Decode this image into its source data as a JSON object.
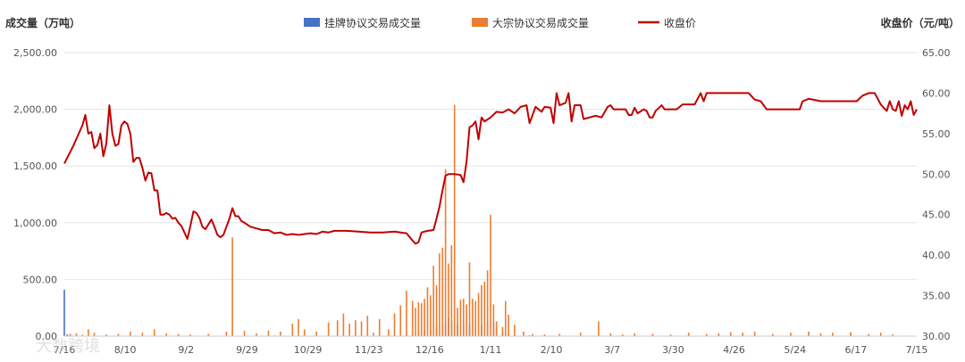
{
  "chart_data": {
    "type": "bar+line",
    "left_axis_title": "成交量（万吨）",
    "right_axis_title": "收盘价（元/吨）",
    "left_ylim": [
      0,
      2500
    ],
    "left_ticks": [
      "0.00",
      "500.00",
      "1,000.00",
      "1,500.00",
      "2,000.00",
      "2,500.00"
    ],
    "right_ylim": [
      30,
      65
    ],
    "right_ticks": [
      "30.00",
      "35.00",
      "40.00",
      "45.00",
      "50.00",
      "55.00",
      "60.00",
      "65.00"
    ],
    "x_ticks": [
      "7/16",
      "8/10",
      "9/2",
      "9/29",
      "10/29",
      "11/23",
      "12/16",
      "1/11",
      "2/10",
      "3/7",
      "3/30",
      "4/26",
      "5/24",
      "6/17",
      "7/15"
    ],
    "legend": [
      {
        "name": "挂牌协议交易成交量",
        "color": "#4472c4",
        "kind": "bar"
      },
      {
        "name": "大宗协议交易成交量",
        "color": "#ed7d31",
        "kind": "bar"
      },
      {
        "name": "收盘价",
        "color": "#c00000",
        "kind": "line"
      }
    ],
    "series": [
      {
        "name": "挂牌协议交易成交量",
        "points": [
          [
            0,
            410
          ],
          [
            1,
            15
          ],
          [
            2,
            8
          ],
          [
            3,
            5
          ],
          [
            10,
            6
          ],
          [
            20,
            4
          ],
          [
            48,
            4
          ],
          [
            70,
            6
          ],
          [
            100,
            3
          ],
          [
            105,
            5
          ],
          [
            110,
            8
          ],
          [
            112,
            10
          ],
          [
            114,
            14
          ],
          [
            116,
            18
          ],
          [
            118,
            30
          ],
          [
            120,
            50
          ],
          [
            122,
            60
          ],
          [
            124,
            80
          ],
          [
            126,
            100
          ],
          [
            127,
            120
          ],
          [
            128,
            160
          ],
          [
            129,
            140
          ],
          [
            130,
            120
          ],
          [
            131,
            100
          ],
          [
            133,
            90
          ],
          [
            135,
            110
          ],
          [
            137,
            90
          ],
          [
            139,
            100
          ],
          [
            141,
            120
          ],
          [
            143,
            130
          ],
          [
            144,
            100
          ],
          [
            146,
            30
          ],
          [
            148,
            20
          ],
          [
            150,
            10
          ],
          [
            155,
            8
          ],
          [
            160,
            5
          ],
          [
            180,
            3
          ],
          [
            200,
            3
          ],
          [
            230,
            3
          ],
          [
            262,
            20
          ],
          [
            275,
            4
          ]
        ]
      },
      {
        "name": "大宗协议交易成交量",
        "points": [
          [
            0,
            10
          ],
          [
            2,
            20
          ],
          [
            4,
            25
          ],
          [
            6,
            12
          ],
          [
            8,
            60
          ],
          [
            10,
            30
          ],
          [
            14,
            15
          ],
          [
            18,
            20
          ],
          [
            22,
            40
          ],
          [
            26,
            30
          ],
          [
            30,
            60
          ],
          [
            34,
            25
          ],
          [
            38,
            20
          ],
          [
            42,
            15
          ],
          [
            48,
            20
          ],
          [
            54,
            40
          ],
          [
            56,
            870
          ],
          [
            60,
            45
          ],
          [
            64,
            25
          ],
          [
            68,
            50
          ],
          [
            72,
            40
          ],
          [
            76,
            110
          ],
          [
            78,
            150
          ],
          [
            80,
            60
          ],
          [
            84,
            40
          ],
          [
            88,
            120
          ],
          [
            91,
            140
          ],
          [
            93,
            200
          ],
          [
            95,
            110
          ],
          [
            97,
            140
          ],
          [
            99,
            130
          ],
          [
            101,
            180
          ],
          [
            103,
            30
          ],
          [
            105,
            150
          ],
          [
            108,
            60
          ],
          [
            110,
            200
          ],
          [
            112,
            270
          ],
          [
            114,
            400
          ],
          [
            116,
            310
          ],
          [
            117,
            250
          ],
          [
            118,
            300
          ],
          [
            119,
            290
          ],
          [
            120,
            330
          ],
          [
            121,
            430
          ],
          [
            122,
            360
          ],
          [
            123,
            620
          ],
          [
            124,
            450
          ],
          [
            125,
            730
          ],
          [
            126,
            780
          ],
          [
            127,
            1470
          ],
          [
            128,
            640
          ],
          [
            129,
            800
          ],
          [
            130,
            2040
          ],
          [
            131,
            250
          ],
          [
            132,
            320
          ],
          [
            133,
            330
          ],
          [
            134,
            280
          ],
          [
            135,
            650
          ],
          [
            136,
            330
          ],
          [
            137,
            310
          ],
          [
            138,
            380
          ],
          [
            139,
            450
          ],
          [
            140,
            480
          ],
          [
            141,
            580
          ],
          [
            142,
            1070
          ],
          [
            143,
            280
          ],
          [
            144,
            130
          ],
          [
            146,
            80
          ],
          [
            147,
            310
          ],
          [
            148,
            190
          ],
          [
            150,
            100
          ],
          [
            153,
            40
          ],
          [
            156,
            20
          ],
          [
            160,
            15
          ],
          [
            165,
            20
          ],
          [
            172,
            30
          ],
          [
            178,
            130
          ],
          [
            182,
            25
          ],
          [
            186,
            15
          ],
          [
            190,
            25
          ],
          [
            196,
            20
          ],
          [
            202,
            15
          ],
          [
            208,
            30
          ],
          [
            214,
            20
          ],
          [
            218,
            25
          ],
          [
            222,
            35
          ],
          [
            226,
            30
          ],
          [
            230,
            40
          ],
          [
            236,
            20
          ],
          [
            242,
            30
          ],
          [
            248,
            40
          ],
          [
            252,
            25
          ],
          [
            256,
            30
          ],
          [
            262,
            35
          ],
          [
            268,
            20
          ],
          [
            272,
            30
          ],
          [
            276,
            15
          ]
        ]
      },
      {
        "name": "收盘价",
        "points": [
          [
            0,
            51.3
          ],
          [
            3,
            53.5
          ],
          [
            6,
            56.0
          ],
          [
            7,
            57.3
          ],
          [
            8,
            55.0
          ],
          [
            9,
            55.2
          ],
          [
            10,
            53.2
          ],
          [
            11,
            53.6
          ],
          [
            12,
            55.0
          ],
          [
            13,
            52.2
          ],
          [
            14,
            53.8
          ],
          [
            15,
            58.5
          ],
          [
            16,
            55.0
          ],
          [
            17,
            53.5
          ],
          [
            18,
            53.7
          ],
          [
            19,
            56.0
          ],
          [
            20,
            56.5
          ],
          [
            21,
            56.2
          ],
          [
            22,
            55.0
          ],
          [
            23,
            51.5
          ],
          [
            24,
            52.0
          ],
          [
            25,
            52.0
          ],
          [
            26,
            50.8
          ],
          [
            27,
            49.2
          ],
          [
            28,
            50.2
          ],
          [
            29,
            50.1
          ],
          [
            30,
            48.0
          ],
          [
            31,
            48.0
          ],
          [
            32,
            45.0
          ],
          [
            33,
            45.0
          ],
          [
            34,
            45.2
          ],
          [
            35,
            45.0
          ],
          [
            36,
            44.5
          ],
          [
            37,
            44.6
          ],
          [
            38,
            44.0
          ],
          [
            39,
            43.6
          ],
          [
            40,
            42.8
          ],
          [
            41,
            42.0
          ],
          [
            42,
            43.6
          ],
          [
            43,
            45.4
          ],
          [
            44,
            45.2
          ],
          [
            45,
            44.6
          ],
          [
            46,
            43.5
          ],
          [
            47,
            43.2
          ],
          [
            48,
            43.8
          ],
          [
            49,
            44.4
          ],
          [
            50,
            43.5
          ],
          [
            51,
            42.5
          ],
          [
            52,
            42.2
          ],
          [
            53,
            42.5
          ],
          [
            54,
            43.5
          ],
          [
            55,
            44.5
          ],
          [
            56,
            45.8
          ],
          [
            57,
            44.8
          ],
          [
            58,
            44.8
          ],
          [
            59,
            44.2
          ],
          [
            60,
            44.0
          ],
          [
            62,
            43.5
          ],
          [
            64,
            43.3
          ],
          [
            66,
            43.1
          ],
          [
            68,
            43.1
          ],
          [
            70,
            42.7
          ],
          [
            72,
            42.8
          ],
          [
            74,
            42.5
          ],
          [
            76,
            42.6
          ],
          [
            78,
            42.5
          ],
          [
            80,
            42.6
          ],
          [
            82,
            42.7
          ],
          [
            84,
            42.6
          ],
          [
            86,
            42.9
          ],
          [
            88,
            42.8
          ],
          [
            90,
            43.0
          ],
          [
            94,
            43.0
          ],
          [
            98,
            42.9
          ],
          [
            102,
            42.8
          ],
          [
            106,
            42.8
          ],
          [
            110,
            42.9
          ],
          [
            112,
            42.8
          ],
          [
            114,
            42.7
          ],
          [
            116,
            41.8
          ],
          [
            117,
            41.4
          ],
          [
            118,
            41.6
          ],
          [
            119,
            42.8
          ],
          [
            121,
            43.0
          ],
          [
            123,
            43.1
          ],
          [
            124,
            44.5
          ],
          [
            125,
            46.0
          ],
          [
            126,
            48.0
          ],
          [
            127,
            49.8
          ],
          [
            128,
            50.0
          ],
          [
            130,
            50.0
          ],
          [
            132,
            49.9
          ],
          [
            133,
            49.0
          ],
          [
            134,
            51.5
          ],
          [
            135,
            55.8
          ],
          [
            136,
            56.0
          ],
          [
            137,
            56.5
          ],
          [
            138,
            54.3
          ],
          [
            139,
            57.0
          ],
          [
            140,
            56.5
          ],
          [
            142,
            57.0
          ],
          [
            144,
            57.7
          ],
          [
            146,
            57.6
          ],
          [
            148,
            58.0
          ],
          [
            150,
            57.5
          ],
          [
            152,
            58.3
          ],
          [
            154,
            58.5
          ],
          [
            155,
            56.3
          ],
          [
            157,
            58.3
          ],
          [
            159,
            57.7
          ],
          [
            160,
            58.3
          ],
          [
            162,
            58.2
          ],
          [
            163,
            56.3
          ],
          [
            164,
            60.0
          ],
          [
            165,
            58.5
          ],
          [
            167,
            58.8
          ],
          [
            168,
            60.0
          ],
          [
            169,
            56.5
          ],
          [
            170,
            58.5
          ],
          [
            172,
            58.5
          ],
          [
            173,
            56.8
          ],
          [
            175,
            57.0
          ],
          [
            177,
            57.2
          ],
          [
            179,
            57.0
          ],
          [
            181,
            58.3
          ],
          [
            182,
            58.5
          ],
          [
            183,
            58.0
          ],
          [
            187,
            58.0
          ],
          [
            188,
            57.3
          ],
          [
            189,
            57.3
          ],
          [
            190,
            58.2
          ],
          [
            191,
            57.5
          ],
          [
            193,
            58.0
          ],
          [
            194,
            57.8
          ],
          [
            195,
            57.0
          ],
          [
            196,
            57.0
          ],
          [
            197,
            57.8
          ],
          [
            199,
            58.5
          ],
          [
            200,
            58.0
          ],
          [
            202,
            58.0
          ],
          [
            204,
            58.0
          ],
          [
            206,
            58.6
          ],
          [
            208,
            58.6
          ],
          [
            210,
            58.6
          ],
          [
            212,
            60.0
          ],
          [
            213,
            59.0
          ],
          [
            214,
            60.0
          ],
          [
            218,
            60.0
          ],
          [
            222,
            60.0
          ],
          [
            226,
            60.0
          ],
          [
            228,
            60.0
          ],
          [
            230,
            59.2
          ],
          [
            232,
            59.0
          ],
          [
            234,
            58.0
          ],
          [
            238,
            58.0
          ],
          [
            242,
            58.0
          ],
          [
            245,
            58.0
          ],
          [
            246,
            59.0
          ],
          [
            248,
            59.3
          ],
          [
            252,
            59.0
          ],
          [
            256,
            59.0
          ],
          [
            260,
            59.0
          ],
          [
            264,
            59.0
          ],
          [
            266,
            59.7
          ],
          [
            268,
            60.0
          ],
          [
            270,
            60.0
          ],
          [
            272,
            58.6
          ],
          [
            273,
            58.2
          ],
          [
            274,
            57.8
          ],
          [
            275,
            59.0
          ],
          [
            276,
            58.0
          ],
          [
            277,
            57.8
          ],
          [
            278,
            59.0
          ],
          [
            279,
            57.2
          ],
          [
            280,
            58.5
          ],
          [
            281,
            58.0
          ],
          [
            282,
            59.0
          ],
          [
            283,
            57.3
          ],
          [
            284,
            58.0
          ]
        ]
      }
    ]
  },
  "watermark": "大数跨境"
}
